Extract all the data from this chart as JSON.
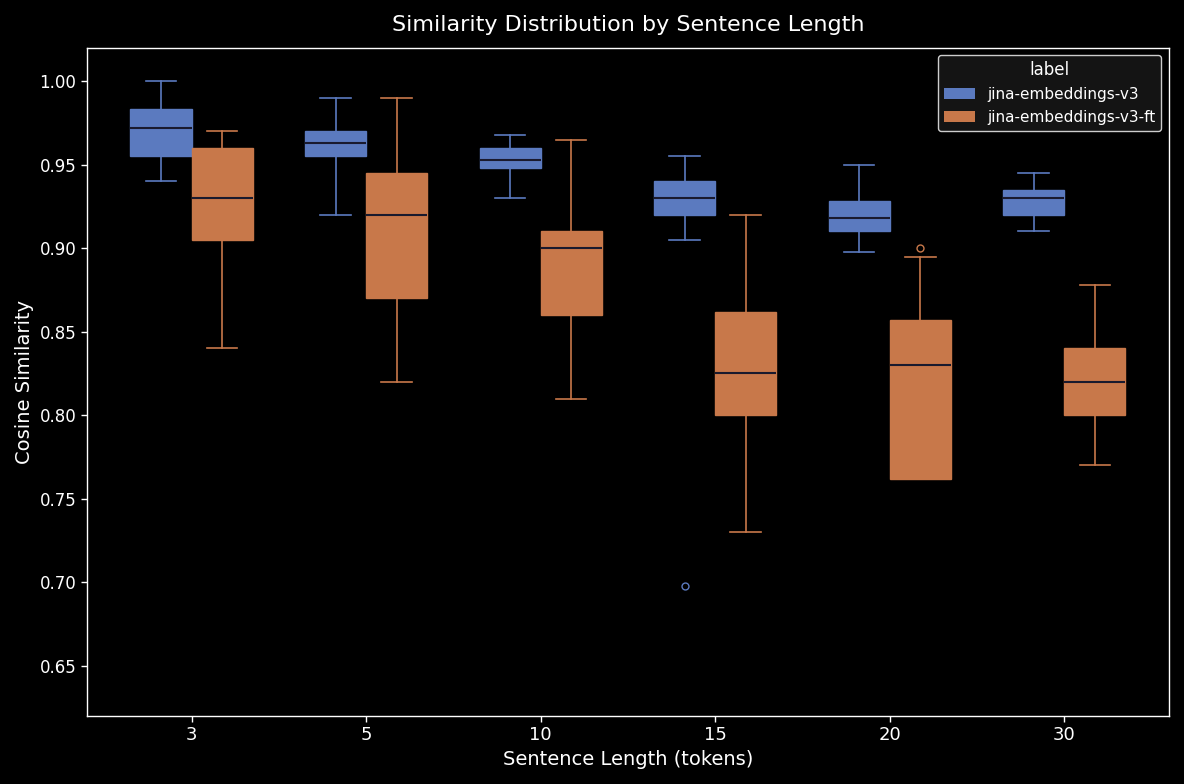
{
  "title": "Similarity Distribution by Sentence Length",
  "xlabel": "Sentence Length (tokens)",
  "ylabel": "Cosine Similarity",
  "background_color": "#000000",
  "text_color": "#ffffff",
  "categories": [
    3,
    5,
    10,
    15,
    20,
    30
  ],
  "blue_color": "#5b7abf",
  "orange_color": "#c8784a",
  "legend_title": "label",
  "legend_labels": [
    "jina-embeddings-v3",
    "jina-embeddings-v3-ft"
  ],
  "ylim": [
    0.62,
    1.02
  ],
  "yticks": [
    0.65,
    0.7,
    0.75,
    0.8,
    0.85,
    0.9,
    0.95,
    1.0
  ],
  "box_width": 0.35,
  "blue_boxes": [
    {
      "q1": 0.955,
      "median": 0.972,
      "q3": 0.983,
      "whislo": 0.94,
      "whishi": 1.0,
      "fliers": []
    },
    {
      "q1": 0.955,
      "median": 0.963,
      "q3": 0.97,
      "whislo": 0.92,
      "whishi": 0.99,
      "fliers": []
    },
    {
      "q1": 0.948,
      "median": 0.953,
      "q3": 0.96,
      "whislo": 0.93,
      "whishi": 0.968,
      "fliers": []
    },
    {
      "q1": 0.92,
      "median": 0.93,
      "q3": 0.94,
      "whislo": 0.905,
      "whishi": 0.955,
      "fliers": [
        0.698
      ]
    },
    {
      "q1": 0.91,
      "median": 0.918,
      "q3": 0.928,
      "whislo": 0.898,
      "whishi": 0.95,
      "fliers": []
    },
    {
      "q1": 0.92,
      "median": 0.93,
      "q3": 0.935,
      "whislo": 0.91,
      "whishi": 0.945,
      "fliers": []
    }
  ],
  "orange_boxes": [
    {
      "q1": 0.905,
      "median": 0.93,
      "q3": 0.96,
      "whislo": 0.84,
      "whishi": 0.97,
      "fliers": []
    },
    {
      "q1": 0.87,
      "median": 0.92,
      "q3": 0.945,
      "whislo": 0.82,
      "whishi": 0.99,
      "fliers": []
    },
    {
      "q1": 0.86,
      "median": 0.9,
      "q3": 0.91,
      "whislo": 0.81,
      "whishi": 0.965,
      "fliers": []
    },
    {
      "q1": 0.8,
      "median": 0.825,
      "q3": 0.862,
      "whislo": 0.73,
      "whishi": 0.92,
      "fliers": []
    },
    {
      "q1": 0.762,
      "median": 0.83,
      "q3": 0.857,
      "whislo": 0.77,
      "whishi": 0.895,
      "fliers": [
        0.9
      ]
    },
    {
      "q1": 0.8,
      "median": 0.82,
      "q3": 0.84,
      "whislo": 0.77,
      "whishi": 0.878,
      "fliers": []
    }
  ]
}
